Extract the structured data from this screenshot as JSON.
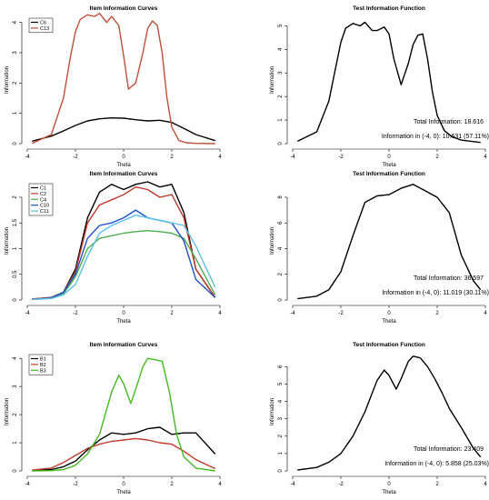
{
  "chart_data": [
    {
      "type": "line",
      "title": "Item Information Curves",
      "xlabel": "Theta",
      "ylabel": "Information",
      "xlim": [
        -4,
        4
      ],
      "ylim": [
        0,
        4.2
      ],
      "x_ticks": [
        -4,
        -2,
        0,
        2,
        4
      ],
      "y_ticks": [
        0,
        1,
        2,
        3,
        4
      ],
      "legend_position": "top-left",
      "series": [
        {
          "name": "C6",
          "color": "#000000",
          "x": [
            -3.8,
            -3,
            -2.5,
            -2,
            -1.5,
            -1,
            -0.5,
            0,
            0.5,
            1,
            1.5,
            2,
            2.5,
            3,
            3.8
          ],
          "y": [
            0.08,
            0.25,
            0.42,
            0.6,
            0.75,
            0.82,
            0.85,
            0.84,
            0.79,
            0.75,
            0.77,
            0.7,
            0.5,
            0.3,
            0.1
          ]
        },
        {
          "name": "C13",
          "color": "#c0503a",
          "x": [
            -3.8,
            -3,
            -2.5,
            -2.2,
            -2,
            -1.8,
            -1.5,
            -1.2,
            -1,
            -0.7,
            -0.5,
            -0.2,
            0,
            0.2,
            0.5,
            0.8,
            1,
            1.2,
            1.4,
            1.6,
            1.8,
            2,
            2.3,
            2.6,
            3,
            3.8
          ],
          "y": [
            0.01,
            0.3,
            1.5,
            2.9,
            3.7,
            4.1,
            4.25,
            4.2,
            4.3,
            4.0,
            4.2,
            3.9,
            2.9,
            1.8,
            2.0,
            3.0,
            3.8,
            4.05,
            3.9,
            3.0,
            1.5,
            0.55,
            0.1,
            0.03,
            0.01,
            0.0
          ]
        }
      ]
    },
    {
      "type": "line",
      "title": "Test Information Function",
      "xlabel": "Theta",
      "ylabel": "Information",
      "xlim": [
        -4,
        4
      ],
      "ylim": [
        0,
        5.4
      ],
      "x_ticks": [
        -4,
        -2,
        0,
        2,
        4
      ],
      "y_ticks": [
        0,
        1,
        2,
        3,
        4,
        5
      ],
      "annotations": [
        "Total Information: 18.616",
        "Information in (-4, 0): 10.631 (57.11%)"
      ],
      "series": [
        {
          "color": "#000000",
          "x": [
            -3.8,
            -3,
            -2.5,
            -2.2,
            -2,
            -1.8,
            -1.5,
            -1.2,
            -1,
            -0.7,
            -0.5,
            -0.2,
            0,
            0.2,
            0.5,
            0.8,
            1,
            1.2,
            1.4,
            1.6,
            1.8,
            2,
            2.3,
            2.6,
            3,
            3.8
          ],
          "y": [
            0.1,
            0.5,
            1.8,
            3.3,
            4.3,
            4.9,
            5.1,
            5.0,
            5.15,
            4.8,
            4.8,
            4.95,
            4.65,
            3.6,
            2.5,
            3.4,
            4.2,
            4.6,
            4.65,
            3.6,
            2.2,
            1.2,
            0.55,
            0.3,
            0.15,
            0.05
          ]
        }
      ]
    },
    {
      "type": "line",
      "title": "Item Information Curves",
      "xlabel": "Theta",
      "ylabel": "Information",
      "xlim": [
        -4,
        4
      ],
      "ylim": [
        0,
        2.3
      ],
      "x_ticks": [
        -4,
        -2,
        0,
        2,
        4
      ],
      "y_ticks": [
        0,
        0.5,
        1,
        1.5,
        2
      ],
      "legend_position": "top-left",
      "series": [
        {
          "name": "C1",
          "color": "#000000",
          "x": [
            -3.8,
            -3,
            -2.5,
            -2,
            -1.5,
            -1,
            -0.5,
            0,
            0.5,
            1,
            1.5,
            2,
            2.5,
            3,
            3.8
          ],
          "y": [
            0.02,
            0.05,
            0.15,
            0.6,
            1.6,
            2.1,
            2.25,
            2.15,
            2.25,
            2.3,
            2.2,
            2.25,
            1.7,
            0.6,
            0.05
          ]
        },
        {
          "name": "C2",
          "color": "#c0392b",
          "x": [
            -3.8,
            -3,
            -2.5,
            -2,
            -1.5,
            -1,
            -0.5,
            0,
            0.5,
            1,
            1.5,
            2,
            2.5,
            3,
            3.8
          ],
          "y": [
            0.02,
            0.05,
            0.15,
            0.55,
            1.5,
            1.85,
            1.95,
            2.05,
            2.2,
            2.15,
            2.0,
            2.05,
            1.6,
            0.6,
            0.05
          ]
        },
        {
          "name": "C4",
          "color": "#4caf50",
          "x": [
            -3.8,
            -3,
            -2.5,
            -2,
            -1.5,
            -1,
            -0.5,
            0,
            0.5,
            1,
            1.5,
            2,
            2.5,
            3,
            3.8
          ],
          "y": [
            0.01,
            0.04,
            0.12,
            0.45,
            1.0,
            1.2,
            1.25,
            1.3,
            1.33,
            1.35,
            1.33,
            1.3,
            1.2,
            0.8,
            0.1
          ]
        },
        {
          "name": "C10",
          "color": "#1f4fc7",
          "x": [
            -3.8,
            -3,
            -2.5,
            -2,
            -1.5,
            -1,
            -0.5,
            0,
            0.5,
            1,
            1.5,
            2,
            2.5,
            3,
            3.8
          ],
          "y": [
            0.01,
            0.04,
            0.15,
            0.5,
            1.2,
            1.45,
            1.5,
            1.6,
            1.75,
            1.6,
            1.55,
            1.5,
            1.15,
            0.4,
            0.05
          ]
        },
        {
          "name": "C11",
          "color": "#5bc0eb",
          "x": [
            -3.8,
            -3,
            -2.5,
            -2,
            -1.5,
            -1,
            -0.5,
            0,
            0.5,
            1,
            1.5,
            2,
            2.5,
            3,
            3.8
          ],
          "y": [
            0.01,
            0.03,
            0.1,
            0.3,
            0.85,
            1.3,
            1.45,
            1.55,
            1.65,
            1.6,
            1.55,
            1.5,
            1.45,
            1.05,
            0.25
          ]
        }
      ]
    },
    {
      "type": "line",
      "title": "Test Information Function",
      "xlabel": "Theta",
      "ylabel": "Information",
      "xlim": [
        -4,
        4
      ],
      "ylim": [
        0,
        9.2
      ],
      "x_ticks": [
        -4,
        -2,
        0,
        2,
        4
      ],
      "y_ticks": [
        0,
        2,
        4,
        6,
        8
      ],
      "annotations": [
        "Total Information: 36.597",
        "Information in (-4, 0): 11.019 (30.11%)"
      ],
      "series": [
        {
          "color": "#000000",
          "x": [
            -3.8,
            -3,
            -2.5,
            -2,
            -1.5,
            -1,
            -0.5,
            0,
            0.5,
            1,
            1.5,
            2,
            2.5,
            3,
            3.5,
            3.8
          ],
          "y": [
            0.1,
            0.3,
            0.8,
            2.2,
            5.0,
            7.6,
            8.1,
            8.2,
            8.7,
            9.0,
            8.5,
            8.0,
            6.8,
            3.5,
            1.5,
            0.8
          ]
        }
      ]
    },
    {
      "type": "line",
      "title": "Item Information Curves",
      "xlabel": "Theta",
      "ylabel": "Information",
      "xlim": [
        -4,
        4
      ],
      "ylim": [
        0,
        4.2
      ],
      "x_ticks": [
        -4,
        -2,
        0,
        2,
        4
      ],
      "y_ticks": [
        0,
        1,
        2,
        3,
        4
      ],
      "legend_position": "top-left",
      "series": [
        {
          "name": "B1",
          "color": "#000000",
          "x": [
            -3.8,
            -3,
            -2.5,
            -2,
            -1.5,
            -1,
            -0.5,
            0,
            0.5,
            1,
            1.5,
            2,
            2.5,
            3,
            3.8
          ],
          "y": [
            0.02,
            0.05,
            0.15,
            0.35,
            0.75,
            1.1,
            1.35,
            1.3,
            1.35,
            1.5,
            1.55,
            1.3,
            1.35,
            1.35,
            0.6
          ]
        },
        {
          "name": "B2",
          "color": "#c0392b",
          "x": [
            -3.8,
            -3,
            -2.5,
            -2,
            -1.5,
            -1,
            -0.5,
            0,
            0.5,
            1,
            1.5,
            2,
            2.5,
            3,
            3.8
          ],
          "y": [
            0.03,
            0.1,
            0.3,
            0.55,
            0.8,
            0.95,
            1.05,
            1.1,
            1.15,
            1.1,
            1.0,
            0.95,
            0.7,
            0.4,
            0.08
          ]
        },
        {
          "name": "B3",
          "color": "#44bb22",
          "x": [
            -3.8,
            -3,
            -2.5,
            -2,
            -1.5,
            -1,
            -0.5,
            -0.2,
            0,
            0.3,
            0.5,
            0.8,
            1,
            1.3,
            1.6,
            1.9,
            2.2,
            2.5,
            3,
            3.8
          ],
          "y": [
            0.0,
            0.01,
            0.05,
            0.2,
            0.6,
            1.3,
            2.8,
            3.4,
            3.1,
            2.4,
            2.9,
            3.7,
            4.0,
            3.95,
            3.9,
            2.8,
            1.3,
            0.5,
            0.1,
            0.0
          ]
        }
      ]
    },
    {
      "type": "line",
      "title": "Test Information Function",
      "xlabel": "Theta",
      "ylabel": "Information",
      "xlim": [
        -4,
        4
      ],
      "ylim": [
        0,
        6.8
      ],
      "x_ticks": [
        -4,
        -2,
        0,
        2,
        4
      ],
      "y_ticks": [
        0,
        1,
        2,
        3,
        4,
        5,
        6
      ],
      "annotations": [
        "Total Information: 23.409",
        "Information in (-4, 0): 5.858 (25.03%)"
      ],
      "series": [
        {
          "color": "#000000",
          "x": [
            -3.8,
            -3,
            -2.5,
            -2,
            -1.5,
            -1,
            -0.5,
            -0.2,
            0,
            0.3,
            0.5,
            0.8,
            1,
            1.3,
            1.6,
            1.9,
            2.2,
            2.5,
            3,
            3.5,
            3.8
          ],
          "y": [
            0.05,
            0.2,
            0.5,
            1.0,
            2.0,
            3.4,
            5.2,
            5.8,
            5.5,
            4.7,
            5.3,
            6.3,
            6.6,
            6.5,
            6.0,
            5.3,
            4.5,
            3.6,
            2.5,
            1.3,
            0.8
          ]
        }
      ]
    }
  ]
}
